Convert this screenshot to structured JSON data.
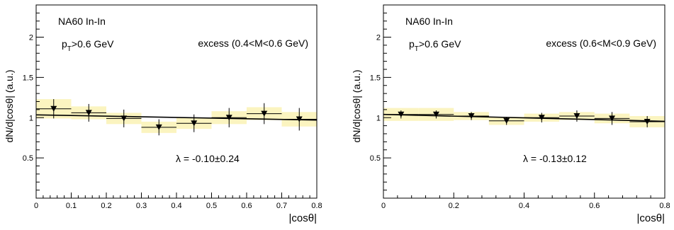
{
  "chart_data": [
    {
      "type": "scatter",
      "panel_label": "NA60 In-In",
      "cut_label": {
        "main": "p",
        "sub": "T",
        "rest": ">0.6 GeV"
      },
      "range_label": "excess (0.4<M<0.6 GeV)",
      "fit_label": "λ = -0.10±0.24",
      "ylabel": "dN/d|cosθ| (a.u.)",
      "xlabel": "|cosθ|",
      "xlim": [
        0,
        0.8
      ],
      "ylim": [
        0,
        2.4
      ],
      "xticks": [
        "0",
        "0.1",
        "0.2",
        "0.3",
        "0.4",
        "0.5",
        "0.6",
        "0.7",
        "0.8"
      ],
      "xtick_values": [
        0,
        0.1,
        0.2,
        0.3,
        0.4,
        0.5,
        0.6,
        0.7,
        0.8
      ],
      "yticks": [
        "0.5",
        "1",
        "1.5",
        "2"
      ],
      "ytick_values": [
        0.5,
        1,
        1.5,
        2
      ],
      "points": [
        {
          "x": 0.05,
          "y": 1.11,
          "stat": 0.12,
          "sys": 0.12
        },
        {
          "x": 0.15,
          "y": 1.06,
          "stat": 0.11,
          "sys": 0.08
        },
        {
          "x": 0.25,
          "y": 0.99,
          "stat": 0.11,
          "sys": 0.07
        },
        {
          "x": 0.35,
          "y": 0.88,
          "stat": 0.1,
          "sys": 0.07
        },
        {
          "x": 0.45,
          "y": 0.93,
          "stat": 0.11,
          "sys": 0.07
        },
        {
          "x": 0.55,
          "y": 1.0,
          "stat": 0.12,
          "sys": 0.08
        },
        {
          "x": 0.65,
          "y": 1.05,
          "stat": 0.13,
          "sys": 0.08
        },
        {
          "x": 0.75,
          "y": 0.98,
          "stat": 0.14,
          "sys": 0.09
        }
      ],
      "fit_curve": {
        "y_at_xmin": 1.035,
        "y_at_xmax": 0.97
      },
      "colors": {
        "systematic_band": "#fbf4c0",
        "markers": "#000000"
      }
    },
    {
      "type": "scatter",
      "panel_label": "NA60 In-In",
      "cut_label": {
        "main": "p",
        "sub": "T",
        "rest": ">0.6 GeV"
      },
      "range_label": "excess (0.6<M<0.9 GeV)",
      "fit_label": "λ = -0.13±0.12",
      "ylabel": "dN/d|cosθ| (a.u.)",
      "xlabel": "|cosθ|",
      "xlim": [
        0,
        0.8
      ],
      "ylim": [
        0,
        2.4
      ],
      "xticks": [
        "0",
        "0.2",
        "0.4",
        "0.6",
        "0.8"
      ],
      "xtick_values": [
        0,
        0.2,
        0.4,
        0.6,
        0.8
      ],
      "yticks": [
        "0.5",
        "1",
        "1.5",
        "2"
      ],
      "ytick_values": [
        0.5,
        1,
        1.5,
        2
      ],
      "points": [
        {
          "x": 0.05,
          "y": 1.04,
          "stat": 0.05,
          "sys": 0.08
        },
        {
          "x": 0.15,
          "y": 1.04,
          "stat": 0.05,
          "sys": 0.08
        },
        {
          "x": 0.25,
          "y": 1.02,
          "stat": 0.05,
          "sys": 0.05
        },
        {
          "x": 0.35,
          "y": 0.96,
          "stat": 0.05,
          "sys": 0.05
        },
        {
          "x": 0.45,
          "y": 1.0,
          "stat": 0.06,
          "sys": 0.05
        },
        {
          "x": 0.55,
          "y": 1.02,
          "stat": 0.07,
          "sys": 0.05
        },
        {
          "x": 0.65,
          "y": 0.99,
          "stat": 0.08,
          "sys": 0.06
        },
        {
          "x": 0.75,
          "y": 0.95,
          "stat": 0.07,
          "sys": 0.07
        }
      ],
      "fit_curve": {
        "y_at_xmin": 1.04,
        "y_at_xmax": 0.955
      },
      "colors": {
        "systematic_band": "#fbf4c0",
        "markers": "#000000"
      }
    }
  ]
}
